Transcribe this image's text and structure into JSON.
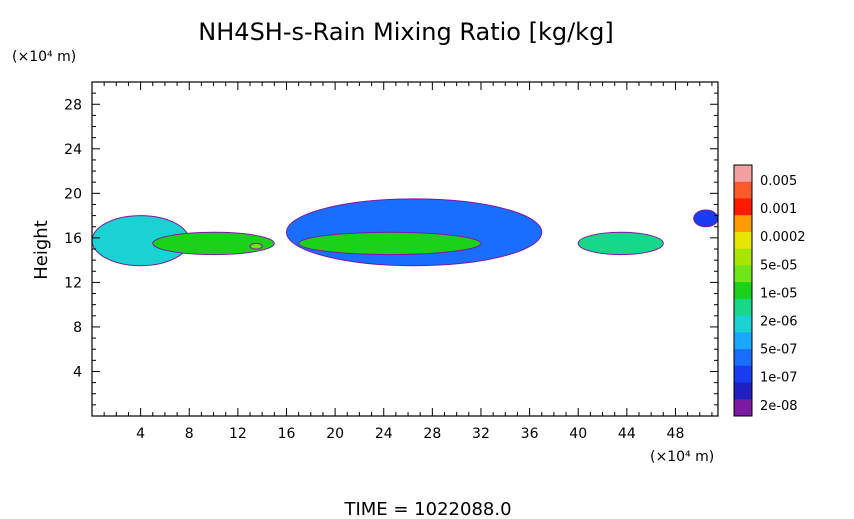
{
  "chart_data": {
    "type": "heatmap",
    "title": "NH4SH-s-Rain Mixing Ratio [kg/kg]",
    "ylabel": "Height",
    "y_unit_label": "(×10⁴ m)",
    "x_unit_label": "(×10⁴ m)",
    "xlim": [
      0,
      51.5
    ],
    "ylim": [
      0,
      30
    ],
    "x_ticks": [
      4,
      8,
      12,
      16,
      20,
      24,
      28,
      32,
      36,
      40,
      44,
      48
    ],
    "y_ticks": [
      4,
      8,
      12,
      16,
      20,
      24,
      28
    ],
    "colorbar": {
      "labels": [
        "0.005",
        "0.001",
        "0.0002",
        "5e-05",
        "1e-05",
        "2e-06",
        "5e-07",
        "1e-07",
        "2e-08"
      ],
      "colors": [
        "#f4a0a0",
        "#ff5a2a",
        "#ff1a00",
        "#ff9a00",
        "#e6e600",
        "#a8e600",
        "#6ee61a",
        "#1ad21a",
        "#17d88a",
        "#1ad2d2",
        "#1aa8ff",
        "#1a6eff",
        "#1a3cf0",
        "#2020c0",
        "#7a1aa0"
      ]
    },
    "regions": [
      {
        "x": [
          0,
          8
        ],
        "y": [
          13.5,
          18
        ],
        "level": "2e-06"
      },
      {
        "x": [
          5,
          15
        ],
        "y": [
          14.5,
          16.5
        ],
        "level": "5e-05"
      },
      {
        "x": [
          13,
          14
        ],
        "y": [
          15,
          15.5
        ],
        "level": "0.0002"
      },
      {
        "x": [
          16,
          37
        ],
        "y": [
          13.5,
          19.5
        ],
        "level": "1e-07"
      },
      {
        "x": [
          17,
          32
        ],
        "y": [
          14.5,
          16.5
        ],
        "level": "5e-05"
      },
      {
        "x": [
          40,
          47
        ],
        "y": [
          14.5,
          16.5
        ],
        "level": "1e-05"
      },
      {
        "x": [
          49.5,
          51.5
        ],
        "y": [
          17,
          18.5
        ],
        "level": "2e-08"
      }
    ],
    "footer": "TIME = 1022088.0"
  }
}
